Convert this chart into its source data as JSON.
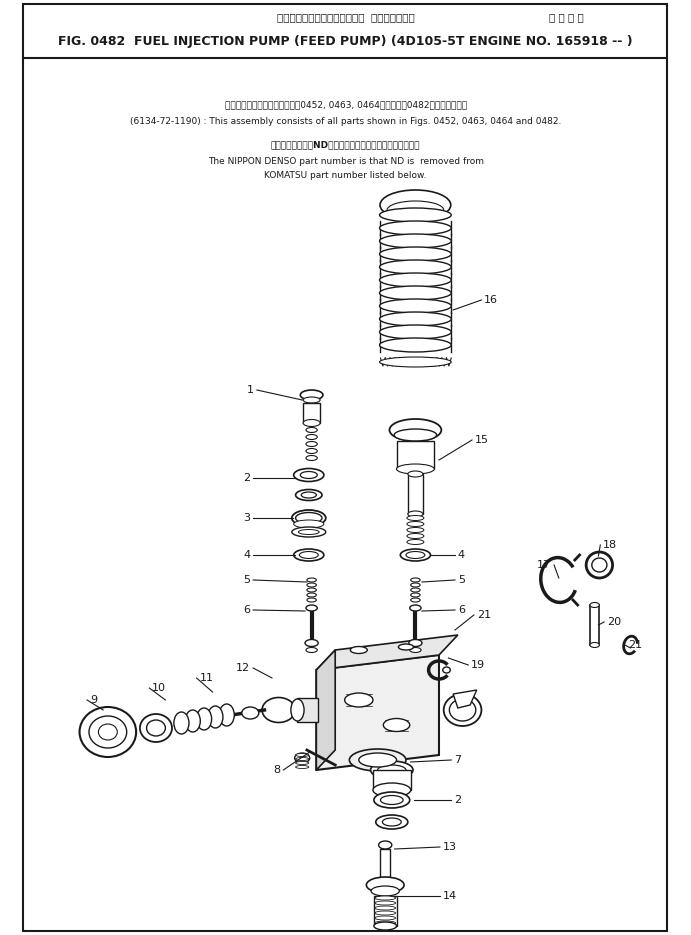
{
  "title_japanese": "フェルインジェクションポンプ  フィードポンプ",
  "title_applicable": "適 用 号 機",
  "title_main": "FIG. 0482  FUEL INJECTION PUMP (FEED PUMP) (4D105-5T ENGINE NO. 165918 -- )",
  "note1_jp": "このアセンブリの構成部品は第0452, 0463, 0464図および第0482図を含みます。",
  "note1_en": "(6134-72-1190) : This assembly consists of all parts shown in Figs. 0452, 0463, 0464 and 0482.",
  "note2_jp": "品番のメーカ記号NDを除いたものが日本電山の品番です。",
  "note2_en1": "The NIPPON DENSO part number is that ND is  removed from",
  "note2_en2": "KOMATSU part number listed below.",
  "bg_color": "#ffffff",
  "lc": "#1a1a1a"
}
